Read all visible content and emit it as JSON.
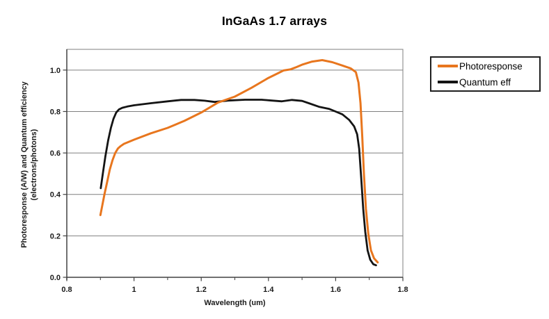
{
  "page": {
    "background": "#FFFFFF"
  },
  "chart_data": {
    "type": "line",
    "title": "InGaAs 1.7 arrays",
    "xlabel": "Wavelength (um)",
    "ylabel": "Photoresponse (A/W) and Quantum efficiency (electrons/photons)",
    "ylabel_line1": "Photoresponse (A/W) and Quantum efficiency",
    "ylabel_line2": "(electrons/photons)",
    "xlim": [
      0.8,
      1.8
    ],
    "ylim": [
      0,
      1.1
    ],
    "x_ticks": [
      0.8,
      1.0,
      1.2,
      1.4,
      1.6,
      1.8
    ],
    "x_tick_labels": [
      "0.8",
      "1",
      "1.2",
      "1.4",
      "1.6",
      "1.8"
    ],
    "x_minor_ticks": [
      0.9,
      1.1,
      1.3,
      1.5,
      1.7
    ],
    "y_ticks": [
      0,
      0.2,
      0.4,
      0.6,
      0.8,
      1.0
    ],
    "y_tick_labels": [
      "0.0",
      "0.2",
      "0.4",
      "0.6",
      "0.8",
      "1.0"
    ],
    "grid": "horizontal-only",
    "legend_position": "right",
    "frame_color": "#7F7F7F",
    "axis_color": "#404040",
    "text_color": "#1A1A1A",
    "series": [
      {
        "name": "Photoresponse",
        "color": "#E8761E",
        "width": 3,
        "points": [
          [
            0.9,
            0.3
          ],
          [
            0.906,
            0.35
          ],
          [
            0.912,
            0.4
          ],
          [
            0.92,
            0.46
          ],
          [
            0.928,
            0.52
          ],
          [
            0.936,
            0.565
          ],
          [
            0.944,
            0.6
          ],
          [
            0.952,
            0.621
          ],
          [
            0.96,
            0.633
          ],
          [
            0.97,
            0.644
          ],
          [
            1.0,
            0.664
          ],
          [
            1.05,
            0.695
          ],
          [
            1.1,
            0.721
          ],
          [
            1.15,
            0.755
          ],
          [
            1.2,
            0.795
          ],
          [
            1.25,
            0.843
          ],
          [
            1.3,
            0.872
          ],
          [
            1.35,
            0.915
          ],
          [
            1.4,
            0.962
          ],
          [
            1.43,
            0.986
          ],
          [
            1.445,
            0.998
          ],
          [
            1.465,
            1.003
          ],
          [
            1.48,
            1.012
          ],
          [
            1.5,
            1.026
          ],
          [
            1.53,
            1.041
          ],
          [
            1.56,
            1.048
          ],
          [
            1.59,
            1.038
          ],
          [
            1.62,
            1.022
          ],
          [
            1.645,
            1.008
          ],
          [
            1.66,
            0.99
          ],
          [
            1.668,
            0.94
          ],
          [
            1.674,
            0.84
          ],
          [
            1.679,
            0.68
          ],
          [
            1.684,
            0.5
          ],
          [
            1.69,
            0.33
          ],
          [
            1.697,
            0.21
          ],
          [
            1.705,
            0.13
          ],
          [
            1.714,
            0.092
          ],
          [
            1.725,
            0.072
          ]
        ]
      },
      {
        "name": "Quantum eff",
        "color": "#141414",
        "width": 2.8,
        "points": [
          [
            0.901,
            0.43
          ],
          [
            0.908,
            0.51
          ],
          [
            0.915,
            0.585
          ],
          [
            0.923,
            0.66
          ],
          [
            0.931,
            0.72
          ],
          [
            0.939,
            0.765
          ],
          [
            0.947,
            0.795
          ],
          [
            0.955,
            0.81
          ],
          [
            0.965,
            0.818
          ],
          [
            0.98,
            0.824
          ],
          [
            1.0,
            0.83
          ],
          [
            1.05,
            0.84
          ],
          [
            1.1,
            0.849
          ],
          [
            1.14,
            0.856
          ],
          [
            1.18,
            0.856
          ],
          [
            1.21,
            0.852
          ],
          [
            1.24,
            0.846
          ],
          [
            1.28,
            0.853
          ],
          [
            1.33,
            0.857
          ],
          [
            1.38,
            0.857
          ],
          [
            1.41,
            0.853
          ],
          [
            1.44,
            0.849
          ],
          [
            1.47,
            0.856
          ],
          [
            1.5,
            0.851
          ],
          [
            1.52,
            0.84
          ],
          [
            1.55,
            0.823
          ],
          [
            1.58,
            0.813
          ],
          [
            1.6,
            0.8
          ],
          [
            1.62,
            0.786
          ],
          [
            1.64,
            0.76
          ],
          [
            1.655,
            0.728
          ],
          [
            1.664,
            0.69
          ],
          [
            1.67,
            0.62
          ],
          [
            1.676,
            0.48
          ],
          [
            1.682,
            0.33
          ],
          [
            1.688,
            0.22
          ],
          [
            1.695,
            0.13
          ],
          [
            1.703,
            0.085
          ],
          [
            1.712,
            0.063
          ],
          [
            1.72,
            0.058
          ]
        ]
      }
    ]
  }
}
